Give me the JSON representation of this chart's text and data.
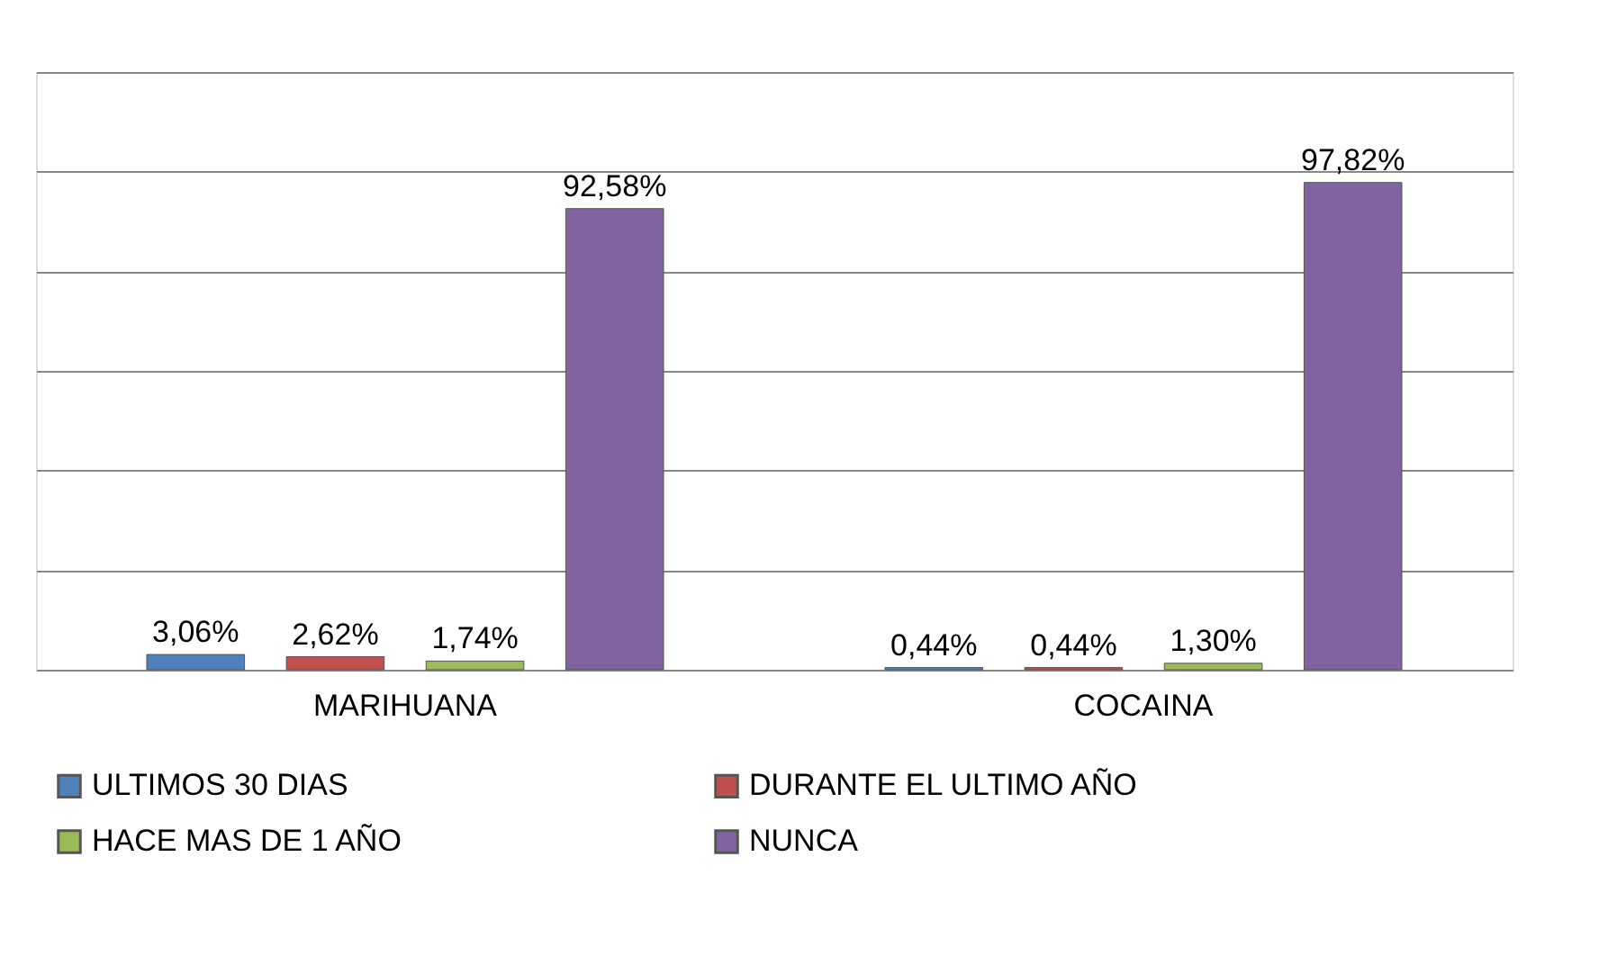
{
  "chart_data": {
    "type": "bar",
    "categories": [
      "MARIHUANA",
      "COCAINA"
    ],
    "series": [
      {
        "name": "ULTIMOS 30 DIAS",
        "color": "#4f81bd",
        "values": [
          3.06,
          0.44
        ],
        "value_labels": [
          "3,06%",
          "0,44%"
        ]
      },
      {
        "name": "DURANTE EL ULTIMO AÑO",
        "color": "#c0504d",
        "values": [
          2.62,
          0.44
        ],
        "value_labels": [
          "2,62%",
          "0,44%"
        ]
      },
      {
        "name": "HACE MAS DE 1 AÑO",
        "color": "#9bbb59",
        "values": [
          1.74,
          1.3
        ],
        "value_labels": [
          "1,74%",
          "1,30%"
        ]
      },
      {
        "name": "NUNCA",
        "color": "#8064a2",
        "values": [
          92.58,
          97.82
        ],
        "value_labels": [
          "92,58%",
          "97,82%"
        ]
      }
    ],
    "ylim": [
      0,
      120
    ],
    "yticks": [
      {
        "value": 0,
        "label": null
      },
      {
        "value": 20,
        "label": null
      },
      {
        "value": 40,
        "label": null
      },
      {
        "value": 60,
        "label": null
      },
      {
        "value": 80,
        "label": null
      },
      {
        "value": 100,
        "label": null
      },
      {
        "value": 120,
        "label": null
      }
    ],
    "grid": "y",
    "tick_labels": "x",
    "legend": "bottom"
  }
}
